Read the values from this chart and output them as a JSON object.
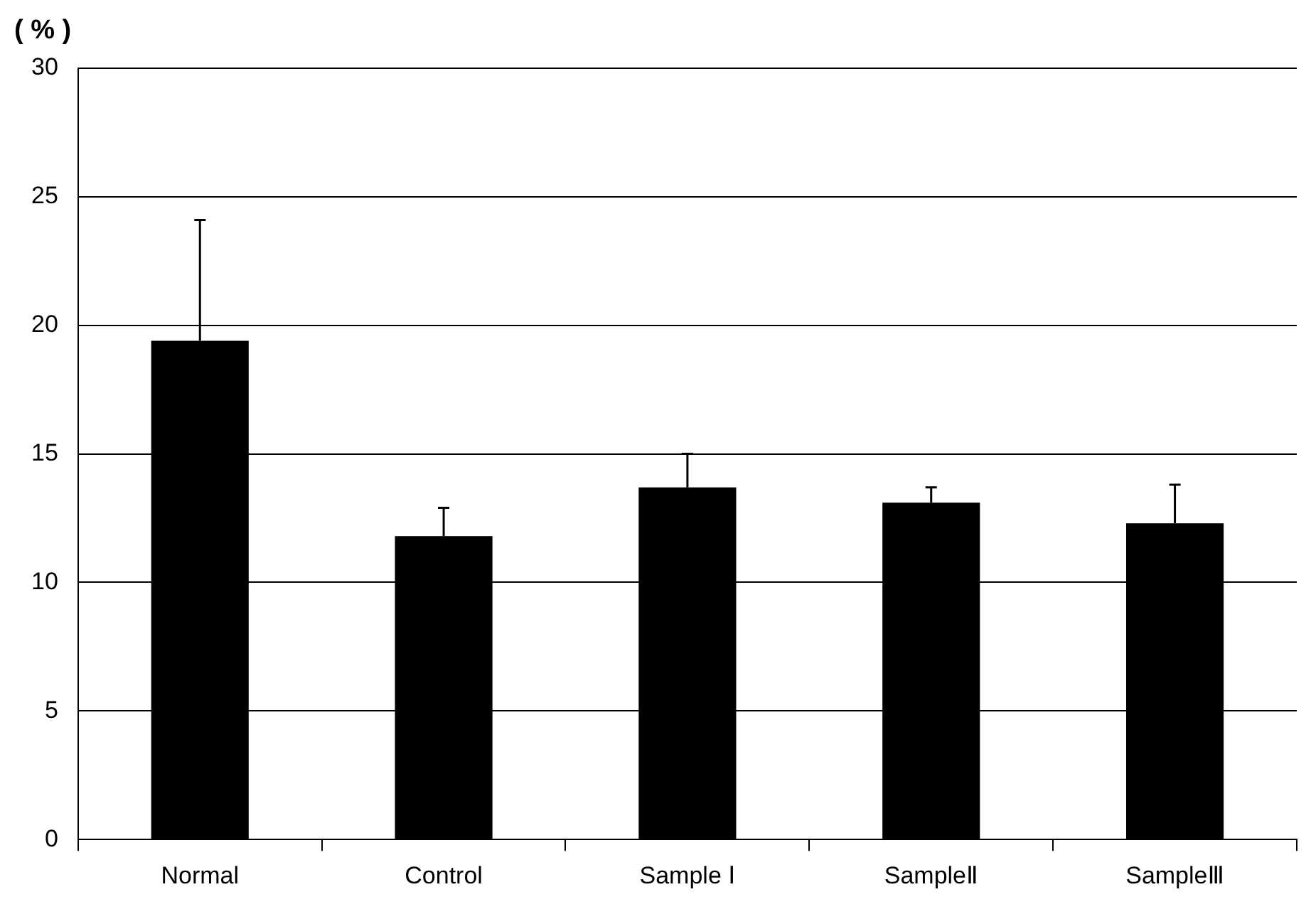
{
  "chart_data": {
    "type": "bar",
    "ylabel": "( % )",
    "categories": [
      "Normal",
      "Control",
      "Sample Ⅰ",
      "SampleⅡ",
      "SampleⅢ"
    ],
    "values": [
      19.4,
      11.8,
      13.7,
      13.1,
      12.3
    ],
    "errors": [
      [
        19.4,
        24.1
      ],
      [
        11.8,
        12.9
      ],
      [
        13.7,
        15.0
      ],
      [
        13.1,
        13.7
      ],
      [
        12.3,
        13.8
      ]
    ],
    "color": "#000000",
    "ylim": [
      0,
      30
    ],
    "yticks": [
      0,
      5,
      10,
      15,
      20,
      25,
      30
    ],
    "grid": "y"
  }
}
